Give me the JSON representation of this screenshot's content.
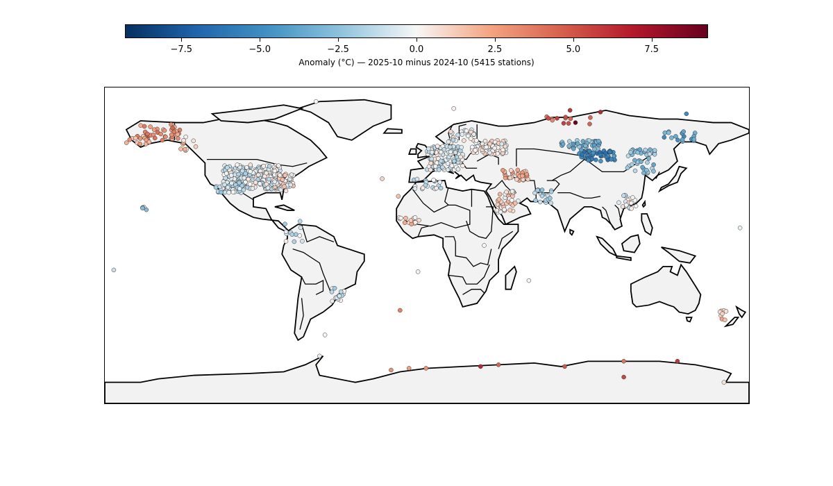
{
  "colorbar": {
    "label": "Anomaly (°C) — 2025-10 minus 2024-10 (5415 stations)",
    "min": -9.3,
    "max": 9.3,
    "ticks": [
      {
        "value": -7.5,
        "label": "−7.5"
      },
      {
        "value": -5.0,
        "label": "−5.0"
      },
      {
        "value": -2.5,
        "label": "−2.5"
      },
      {
        "value": 0.0,
        "label": "0.0"
      },
      {
        "value": 2.5,
        "label": "2.5"
      },
      {
        "value": 5.0,
        "label": "5.0"
      },
      {
        "value": 7.5,
        "label": "7.5"
      }
    ],
    "colormap": [
      "#053061",
      "#2166ac",
      "#4393c3",
      "#92c5de",
      "#f7f7f7",
      "#f4a582",
      "#d6604d",
      "#b2182b",
      "#67001f"
    ]
  },
  "map": {
    "projection": "equirectangular",
    "lon_range": [
      -180,
      180
    ],
    "lat_range": [
      -90,
      90
    ],
    "land_color": "#f2f2f2",
    "station_clusters": [
      {
        "lon": -150,
        "lat": 64,
        "n": 40,
        "spread": [
          12,
          5
        ],
        "anom": 3.2
      },
      {
        "lon": -160,
        "lat": 60,
        "n": 12,
        "spread": [
          8,
          3
        ],
        "anom": 1.8
      },
      {
        "lon": -133,
        "lat": 58,
        "n": 10,
        "spread": [
          6,
          4
        ],
        "anom": 1.0
      },
      {
        "lon": -98,
        "lat": 39,
        "n": 260,
        "spread": [
          16,
          7
        ],
        "anom": -0.6
      },
      {
        "lon": -80,
        "lat": 36,
        "n": 60,
        "spread": [
          6,
          5
        ],
        "anom": 0.4
      },
      {
        "lon": -110,
        "lat": 33,
        "n": 30,
        "spread": [
          8,
          3
        ],
        "anom": -1.2
      },
      {
        "lon": -157,
        "lat": 21,
        "n": 6,
        "spread": [
          2,
          1
        ],
        "anom": -1.5
      },
      {
        "lon": -75,
        "lat": 8,
        "n": 12,
        "spread": [
          6,
          6
        ],
        "anom": -0.8
      },
      {
        "lon": -50,
        "lat": -28,
        "n": 14,
        "spread": [
          4,
          4
        ],
        "anom": -1.0
      },
      {
        "lon": 10,
        "lat": 50,
        "n": 120,
        "spread": [
          10,
          7
        ],
        "anom": -0.5
      },
      {
        "lon": 35,
        "lat": 56,
        "n": 70,
        "spread": [
          10,
          4
        ],
        "anom": 0.3
      },
      {
        "lon": 20,
        "lat": 62,
        "n": 25,
        "spread": [
          8,
          4
        ],
        "anom": -0.3
      },
      {
        "lon": 50,
        "lat": 40,
        "n": 30,
        "spread": [
          8,
          3
        ],
        "anom": 2.0
      },
      {
        "lon": 45,
        "lat": 25,
        "n": 35,
        "spread": [
          6,
          6
        ],
        "anom": 0.8
      },
      {
        "lon": 65,
        "lat": 28,
        "n": 20,
        "spread": [
          5,
          4
        ],
        "anom": -2.0
      },
      {
        "lon": 0,
        "lat": 35,
        "n": 20,
        "spread": [
          8,
          3
        ],
        "anom": -0.8
      },
      {
        "lon": -10,
        "lat": 14,
        "n": 15,
        "spread": [
          6,
          2
        ],
        "anom": 1.2
      },
      {
        "lon": 95,
        "lat": 51,
        "n": 55,
        "spread": [
          10,
          3
        ],
        "anom": -5.5
      },
      {
        "lon": 85,
        "lat": 57,
        "n": 40,
        "spread": [
          12,
          3
        ],
        "anom": -3.0
      },
      {
        "lon": 120,
        "lat": 48,
        "n": 40,
        "spread": [
          8,
          7
        ],
        "anom": -2.5
      },
      {
        "lon": 140,
        "lat": 62,
        "n": 18,
        "spread": [
          10,
          3
        ],
        "anom": -4.0
      },
      {
        "lon": 112,
        "lat": 25,
        "n": 20,
        "spread": [
          5,
          4
        ],
        "anom": 0.0
      },
      {
        "lon": 80,
        "lat": 72,
        "n": 12,
        "spread": [
          15,
          3
        ],
        "anom": 4.5
      },
      {
        "lon": 165,
        "lat": -40,
        "n": 8,
        "spread": [
          3,
          3
        ],
        "anom": 1.0
      }
    ],
    "extra_stations": [
      {
        "lon": 32,
        "lat": 0,
        "anom": 0.1
      },
      {
        "lon": 57,
        "lat": -20,
        "anom": 0.2
      },
      {
        "lon": -25,
        "lat": 38,
        "anom": 1.0
      },
      {
        "lon": -16,
        "lat": 28,
        "anom": 1.5
      },
      {
        "lon": -5,
        "lat": -15,
        "anom": -0.2
      },
      {
        "lon": -15,
        "lat": -37,
        "anom": 3.5
      },
      {
        "lon": -57,
        "lat": -51,
        "anom": 0.1
      },
      {
        "lon": 175,
        "lat": 10,
        "anom": -0.3
      },
      {
        "lon": -175,
        "lat": -14,
        "anom": -1.0
      },
      {
        "lon": 110,
        "lat": -66,
        "anom": 4.0
      },
      {
        "lon": 140,
        "lat": -66,
        "anom": 6.0
      },
      {
        "lon": 110,
        "lat": -75,
        "anom": 5.5
      },
      {
        "lon": 77,
        "lat": -69,
        "anom": 5.0
      },
      {
        "lon": 40,
        "lat": -68,
        "anom": 4.5
      },
      {
        "lon": 30,
        "lat": -69,
        "anom": 6.5
      },
      {
        "lon": -10,
        "lat": -70,
        "anom": 2.5
      },
      {
        "lon": -20,
        "lat": -71,
        "anom": 3.0
      },
      {
        "lon": -60,
        "lat": -63,
        "anom": -0.5
      },
      {
        "lon": -0.5,
        "lat": -70,
        "anom": 3.0
      },
      {
        "lon": 166,
        "lat": -78,
        "anom": 0.5
      },
      {
        "lon": 15,
        "lat": 78,
        "anom": 0.2
      },
      {
        "lon": 80,
        "lat": 77,
        "anom": 6.0
      },
      {
        "lon": 97,
        "lat": 76,
        "anom": 6.5
      },
      {
        "lon": 83,
        "lat": 70,
        "anom": 9.2
      },
      {
        "lon": 145,
        "lat": 75,
        "anom": -5.0
      },
      {
        "lon": -62,
        "lat": 82,
        "anom": 0.0
      }
    ]
  }
}
